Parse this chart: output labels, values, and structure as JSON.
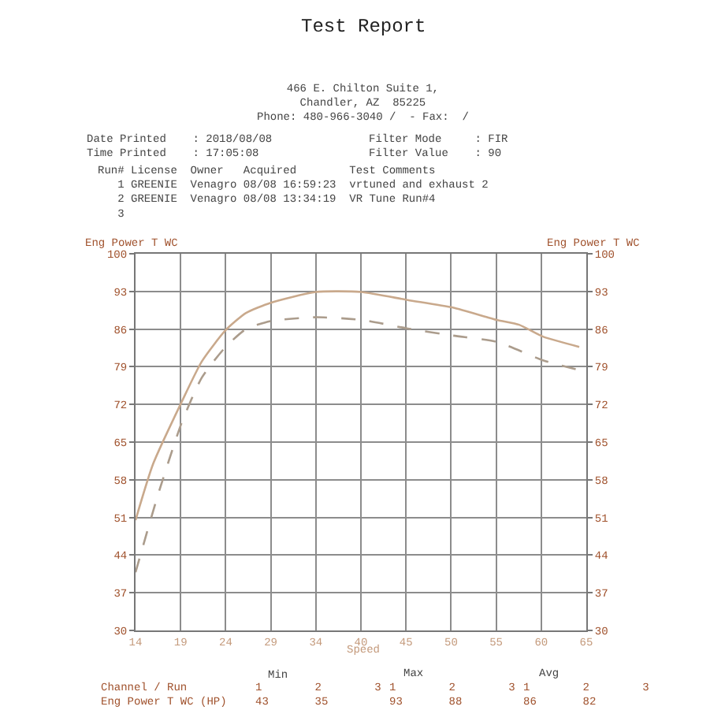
{
  "chart_data": {
    "type": "line",
    "title": "Test Report",
    "xlabel": "Speed",
    "ylabel": "Eng Power T WC",
    "y2label": "Eng Power T WC",
    "xlim": [
      14,
      65
    ],
    "xticks": [
      14,
      {
        "value": 19.1,
        "label": "19"
      },
      {
        "value": 24.2,
        "label": "24"
      },
      {
        "value": 29.3,
        "label": "29"
      },
      {
        "value": 34.4,
        "label": "34"
      },
      {
        "value": 39.5,
        "label": "40"
      },
      {
        "value": 44.6,
        "label": "45"
      },
      {
        "value": 49.7,
        "label": "50"
      },
      {
        "value": 54.8,
        "label": "55"
      },
      {
        "value": 59.9,
        "label": "60"
      },
      65
    ],
    "ylim": [
      30,
      100
    ],
    "yticks": [
      30,
      37,
      44,
      51,
      58,
      65,
      72,
      79,
      86,
      93,
      100
    ],
    "y2lim": [
      30,
      100
    ],
    "y2ticks": [
      30,
      37,
      44,
      51,
      58,
      65,
      72,
      79,
      86,
      93,
      100
    ],
    "grid": true,
    "marker": "none",
    "series": [
      {
        "color": "#c9a98c",
        "line_style": "solid",
        "x": [
          14,
          16,
          19.2,
          21.5,
          24.2,
          26.5,
          29.3,
          34.4,
          39.5,
          44.8,
          49.9,
          54.9,
          57.4,
          60.1,
          64.2
        ],
        "values": [
          50.5,
          61,
          72.4,
          80,
          85.8,
          89,
          90.9,
          92.9,
          92.9,
          91.4,
          90,
          87.7,
          86.8,
          84.6,
          82.7
        ]
      },
      {
        "color": "#ab9c8c",
        "line_style": "dashed",
        "x": [
          14,
          16.5,
          19.2,
          21.5,
          24.2,
          26.5,
          29.3,
          34.4,
          39.6,
          44.8,
          49.9,
          54.9,
          60.1,
          63.9
        ],
        "values": [
          40.8,
          55,
          68.5,
          77,
          82.7,
          86,
          87.5,
          88.2,
          87.7,
          86.1,
          84.8,
          83.6,
          80.2,
          78.5
        ]
      }
    ],
    "annotations": [
      "466 E. Chilton Suite 1,\nChandler, AZ  85225\nPhone: 480-966-3040 /  - Fax:  /",
      "Date Printed    : 2018/08/08\nTime Printed    : 17:05:08",
      "Filter Mode     : FIR\nFilter Value    : 90",
      "Run# License  Owner   Acquired        Test Comments\n   1 GREENIE  Venagro 08/08 16:59:23  vrtuned and exhaust 2\n   2 GREENIE  Venagro 08/08 13:34:19  VR Tune Run#4\n   3",
      "Min",
      "Max",
      "Avg",
      "Channel / Run\nEng Power T WC (HP)",
      "1        2        3\n43       35",
      "1        2        3\n93       88",
      "1        2        3\n86       82"
    ]
  }
}
